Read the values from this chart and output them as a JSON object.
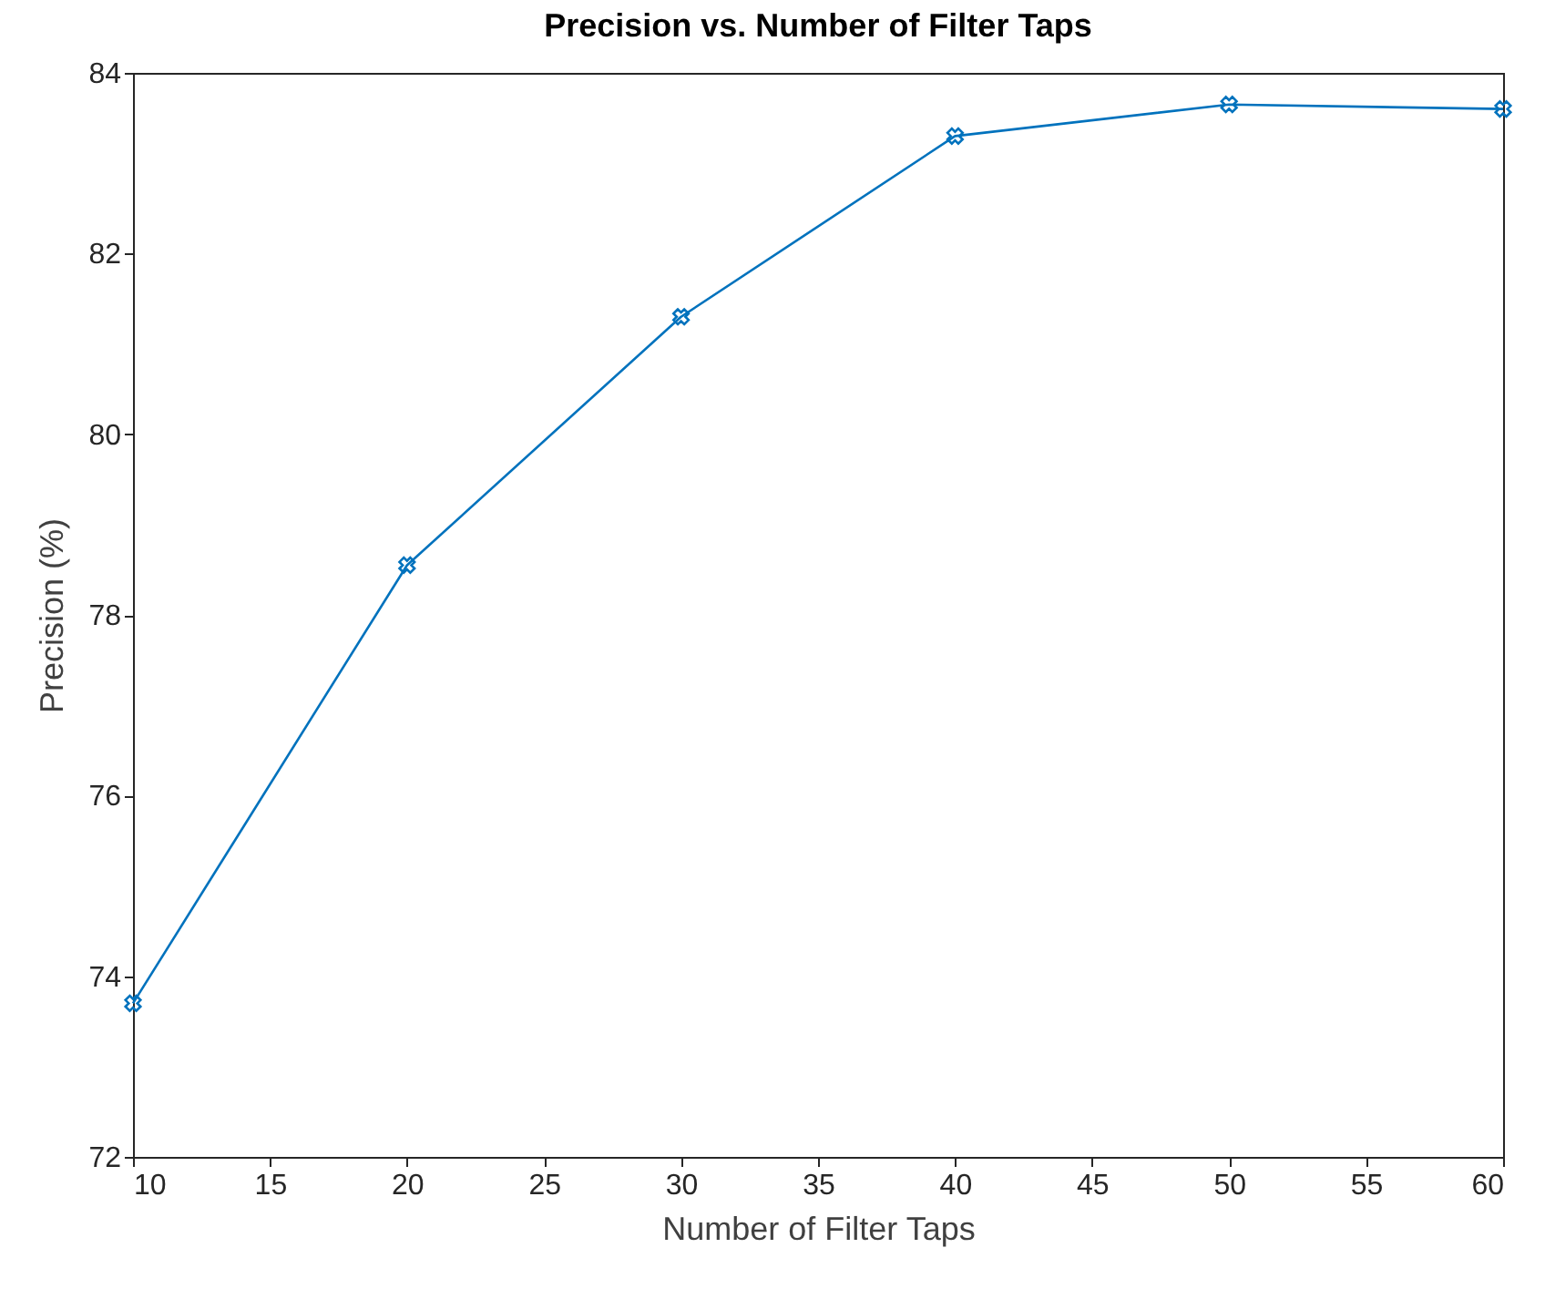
{
  "chart_data": {
    "type": "line",
    "title": "Precision vs. Number of Filter Taps",
    "xlabel": "Number of Filter Taps",
    "ylabel": "Precision (%)",
    "x": [
      10,
      20,
      30,
      40,
      50,
      60
    ],
    "series": [
      {
        "color": "#0072bd",
        "values": [
          73.7,
          78.55,
          81.3,
          83.3,
          83.65,
          83.6
        ]
      }
    ],
    "xlim": [
      10,
      60
    ],
    "xticks": [
      10,
      15,
      20,
      25,
      30,
      35,
      40,
      45,
      50,
      55,
      60
    ],
    "ylim": [
      72,
      84
    ],
    "yticks": [
      72,
      74,
      76,
      78,
      80,
      82,
      84
    ],
    "marker": "cross",
    "line_style": "solid"
  }
}
